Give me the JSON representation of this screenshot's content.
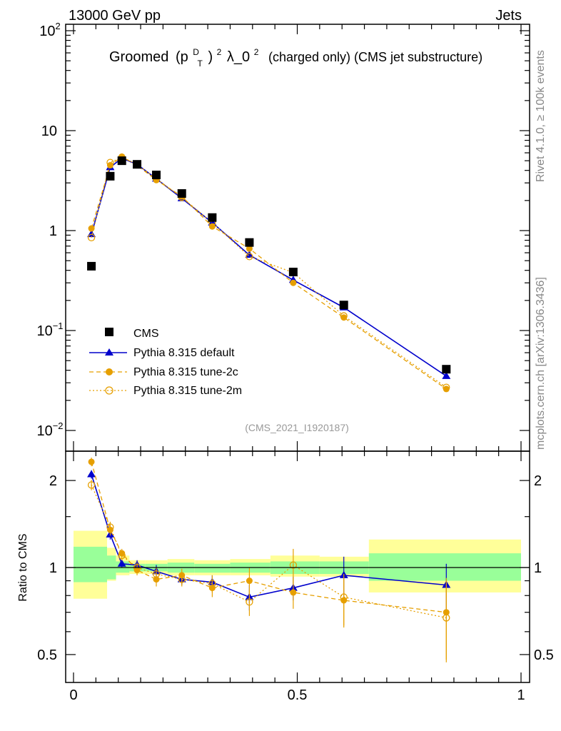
{
  "header": {
    "left": "13000 GeV pp",
    "right": "Jets"
  },
  "side_labels": {
    "rivet": "Rivet 4.1.0, ≥ 100k events",
    "mcplots": "mcplots.cern.ch [arXiv:1306.3436]"
  },
  "annotation": "(CMS_2021_I1920187)",
  "colors": {
    "cms": "#000000",
    "default": "#0000cc",
    "tune2c": "#e69f00",
    "tune2m": "#e69f00",
    "band_inner": "#99ff99",
    "band_outer": "#ffff99"
  },
  "chart_data": [
    {
      "type": "scatter",
      "title": "Groomed (p_T^D)^2 λ_0^2  (charged only) (CMS jet substructure)",
      "title_main": "Groomed",
      "title_p": "p",
      "title_sub_T": "T",
      "title_sup_D": "D",
      "title_sup_2a": "2",
      "title_lambda": "λ_0",
      "title_sup_2b": "2",
      "title_rest": "(charged only) (CMS jet substructure)",
      "xlabel": "",
      "ylabel": "",
      "yscale": "log",
      "xlim": [
        0,
        1
      ],
      "ylim": [
        0.01,
        100
      ],
      "y_ticks": [
        {
          "value": 100,
          "base": "10",
          "exp": "2"
        },
        {
          "value": 10,
          "base": "10",
          "exp": ""
        },
        {
          "value": 1,
          "base": "1",
          "exp": ""
        },
        {
          "value": 0.1,
          "base": "10",
          "exp": "−1"
        },
        {
          "value": 0.01,
          "base": "10",
          "exp": "−2"
        }
      ],
      "series": [
        {
          "name": "CMS",
          "key": "cms",
          "marker": "square",
          "line": "none",
          "x": [
            0.04,
            0.082,
            0.108,
            0.142,
            0.185,
            0.242,
            0.31,
            0.393,
            0.491,
            0.604,
            0.833
          ],
          "y": [
            0.44,
            3.5,
            5.0,
            4.6,
            3.6,
            2.35,
            1.35,
            0.76,
            0.385,
            0.18,
            0.041
          ]
        },
        {
          "name": "Pythia 8.315 default",
          "key": "default",
          "marker": "triangle",
          "line": "solid",
          "x": [
            0.04,
            0.082,
            0.108,
            0.142,
            0.185,
            0.242,
            0.31,
            0.393,
            0.491,
            0.604,
            0.833
          ],
          "y": [
            0.92,
            4.3,
            5.3,
            4.6,
            3.3,
            2.1,
            1.2,
            0.57,
            0.32,
            0.17,
            0.035
          ]
        },
        {
          "name": "Pythia 8.315 tune-2c",
          "key": "tune2c",
          "marker": "circle",
          "line": "dashed",
          "x": [
            0.04,
            0.082,
            0.108,
            0.142,
            0.185,
            0.242,
            0.31,
            0.393,
            0.491,
            0.604,
            0.833
          ],
          "y": [
            1.05,
            4.5,
            5.5,
            4.5,
            3.2,
            2.2,
            1.1,
            0.66,
            0.3,
            0.135,
            0.026
          ]
        },
        {
          "name": "Pythia 8.315 tune-2m",
          "key": "tune2m",
          "marker": "open-circle",
          "line": "dotted",
          "x": [
            0.04,
            0.082,
            0.108,
            0.142,
            0.185,
            0.242,
            0.31,
            0.393,
            0.491,
            0.604,
            0.833
          ],
          "y": [
            0.85,
            4.8,
            5.4,
            4.6,
            3.3,
            2.15,
            1.2,
            0.55,
            0.38,
            0.14,
            0.027
          ]
        }
      ]
    },
    {
      "type": "scatter",
      "title": "",
      "xlabel": "",
      "ylabel": "Ratio to CMS",
      "yscale": "log",
      "xlim": [
        0,
        1
      ],
      "ylim": [
        0.4,
        2.45
      ],
      "x_ticks": [
        {
          "value": 0,
          "label": "0"
        },
        {
          "value": 0.5,
          "label": "0.5"
        },
        {
          "value": 1,
          "label": "1"
        }
      ],
      "y_ticks": [
        {
          "value": 2,
          "label": "2"
        },
        {
          "value": 1,
          "label": "1"
        },
        {
          "value": 0.5,
          "label": "0.5"
        }
      ],
      "bands": [
        {
          "x0": 0.0,
          "x1": 0.075,
          "inner": [
            0.89,
            1.18
          ],
          "outer": [
            0.78,
            1.34
          ]
        },
        {
          "x0": 0.075,
          "x1": 0.095,
          "inner": [
            0.91,
            1.1
          ],
          "outer": [
            0.9,
            1.17
          ]
        },
        {
          "x0": 0.095,
          "x1": 0.125,
          "inner": [
            0.96,
            1.05
          ],
          "outer": [
            0.94,
            1.1
          ]
        },
        {
          "x0": 0.125,
          "x1": 0.16,
          "inner": [
            0.97,
            1.03
          ],
          "outer": [
            0.95,
            1.06
          ]
        },
        {
          "x0": 0.16,
          "x1": 0.21,
          "inner": [
            0.97,
            1.03
          ],
          "outer": [
            0.95,
            1.06
          ]
        },
        {
          "x0": 0.21,
          "x1": 0.27,
          "inner": [
            0.96,
            1.04
          ],
          "outer": [
            0.94,
            1.07
          ]
        },
        {
          "x0": 0.27,
          "x1": 0.35,
          "inner": [
            0.96,
            1.03
          ],
          "outer": [
            0.94,
            1.06
          ]
        },
        {
          "x0": 0.35,
          "x1": 0.44,
          "inner": [
            0.96,
            1.04
          ],
          "outer": [
            0.94,
            1.07
          ]
        },
        {
          "x0": 0.44,
          "x1": 0.55,
          "inner": [
            0.95,
            1.05
          ],
          "outer": [
            0.93,
            1.1
          ]
        },
        {
          "x0": 0.55,
          "x1": 0.66,
          "inner": [
            0.95,
            1.05
          ],
          "outer": [
            0.93,
            1.09
          ]
        },
        {
          "x0": 0.66,
          "x1": 1.0,
          "inner": [
            0.9,
            1.12
          ],
          "outer": [
            0.82,
            1.25
          ]
        }
      ],
      "series": [
        {
          "name": "Pythia 8.315 default",
          "key": "default",
          "marker": "triangle",
          "line": "solid",
          "x": [
            0.04,
            0.082,
            0.108,
            0.142,
            0.185,
            0.242,
            0.31,
            0.393,
            0.491,
            0.604,
            0.833
          ],
          "y": [
            2.1,
            1.3,
            1.03,
            1.02,
            0.97,
            0.91,
            0.89,
            0.79,
            0.85,
            0.94,
            0.87
          ],
          "err": [
            0.07,
            0.05,
            0.03,
            0.04,
            0.05,
            0.04,
            0.05,
            0.08,
            0.08,
            0.15,
            0.16
          ]
        },
        {
          "name": "Pythia 8.315 tune-2c",
          "key": "tune2c",
          "marker": "circle",
          "line": "dashed",
          "x": [
            0.04,
            0.082,
            0.108,
            0.142,
            0.185,
            0.242,
            0.31,
            0.393,
            0.491,
            0.604,
            0.833
          ],
          "y": [
            2.32,
            1.35,
            1.12,
            0.98,
            0.91,
            0.94,
            0.85,
            0.9,
            0.82,
            0.77,
            0.7
          ],
          "err": [
            0.08,
            0.06,
            0.04,
            0.04,
            0.05,
            0.05,
            0.06,
            0.1,
            0.1,
            0.15,
            0.22
          ]
        },
        {
          "name": "Pythia 8.315 tune-2m",
          "key": "tune2m",
          "marker": "open-circle",
          "line": "dotted",
          "x": [
            0.04,
            0.082,
            0.108,
            0.142,
            0.185,
            0.242,
            0.31,
            0.393,
            0.491,
            0.604,
            0.833
          ],
          "y": [
            1.93,
            1.38,
            1.1,
            1.0,
            0.95,
            0.91,
            0.88,
            0.76,
            1.02,
            0.79,
            0.67
          ],
          "err": [
            0.08,
            0.06,
            0.04,
            0.04,
            0.05,
            0.05,
            0.06,
            0.08,
            0.14,
            0.16,
            0.2
          ]
        }
      ]
    }
  ]
}
